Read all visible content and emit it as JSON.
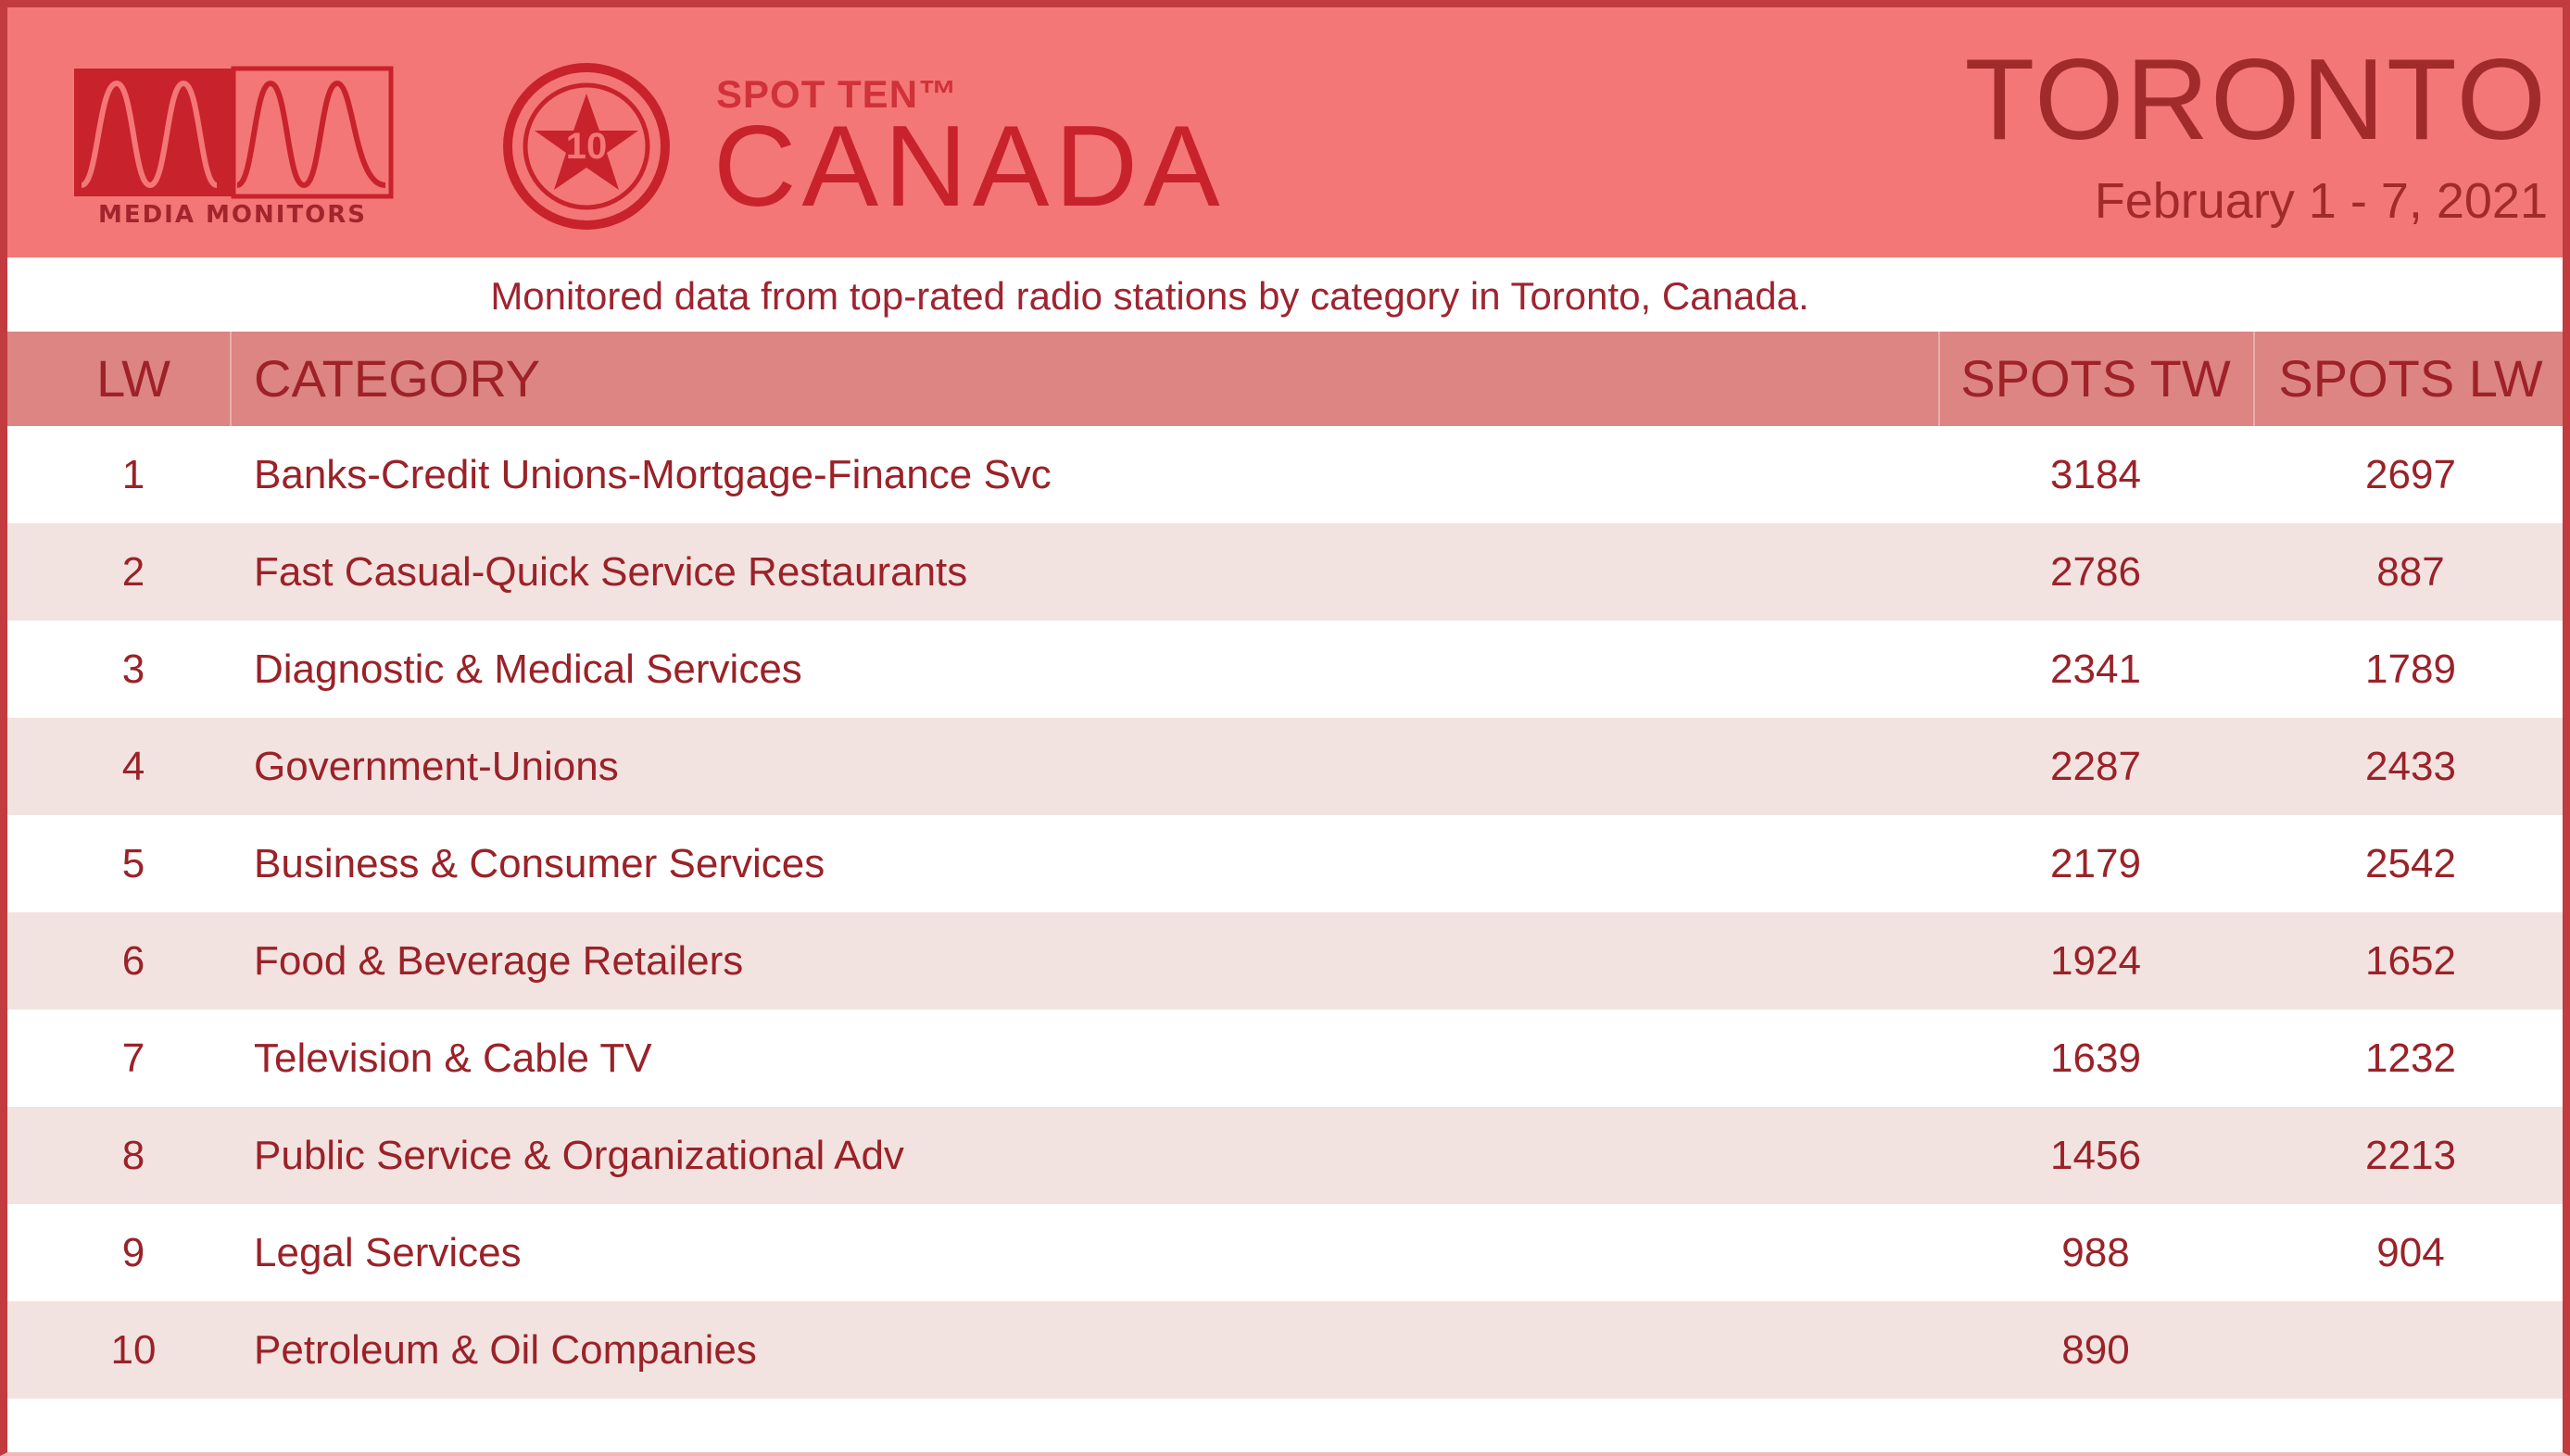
{
  "header": {
    "brand_label": "MEDIA MONITORS",
    "badge_number": "10",
    "product_small": "SPOT TEN™",
    "product_large": "CANADA",
    "city": "TORONTO",
    "dates": "February 1 - 7, 2021"
  },
  "subtitle": "Monitored data from top-rated radio stations by category in Toronto, Canada.",
  "table": {
    "headers": [
      "LW",
      "CATEGORY",
      "SPOTS TW",
      "SPOTS LW"
    ],
    "rows": [
      {
        "lw": "1",
        "category": "Banks-Credit Unions-Mortgage-Finance Svc",
        "spots_tw": "3184",
        "spots_lw": "2697"
      },
      {
        "lw": "2",
        "category": "Fast Casual-Quick Service Restaurants",
        "spots_tw": "2786",
        "spots_lw": "887"
      },
      {
        "lw": "3",
        "category": "Diagnostic & Medical Services",
        "spots_tw": "2341",
        "spots_lw": "1789"
      },
      {
        "lw": "4",
        "category": "Government-Unions",
        "spots_tw": "2287",
        "spots_lw": "2433"
      },
      {
        "lw": "5",
        "category": "Business & Consumer Services",
        "spots_tw": "2179",
        "spots_lw": "2542"
      },
      {
        "lw": "6",
        "category": "Food & Beverage Retailers",
        "spots_tw": "1924",
        "spots_lw": "1652"
      },
      {
        "lw": "7",
        "category": "Television & Cable TV",
        "spots_tw": "1639",
        "spots_lw": "1232"
      },
      {
        "lw": "8",
        "category": "Public Service & Organizational Adv",
        "spots_tw": "1456",
        "spots_lw": "2213"
      },
      {
        "lw": "9",
        "category": "Legal Services",
        "spots_tw": "988",
        "spots_lw": "904"
      },
      {
        "lw": "10",
        "category": "Petroleum & Oil Companies",
        "spots_tw": "890",
        "spots_lw": ""
      }
    ]
  },
  "colors": {
    "header_bg": "#f47777",
    "table_header_bg": "#dc8582",
    "alt_row_bg": "#f2e3e1",
    "text": "#9a2228"
  },
  "icons": {
    "brand_logo": "media-monitors-waveform-logo",
    "badge": "star-circle-badge"
  }
}
